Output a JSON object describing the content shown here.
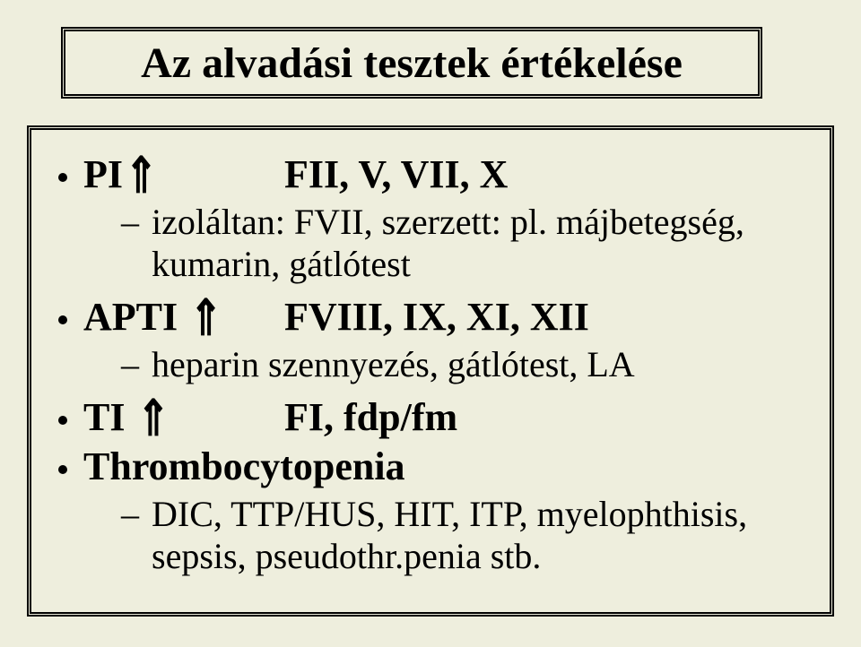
{
  "title": "Az alvadási tesztek értékelése",
  "items": [
    {
      "label": "PI",
      "arrow": "⇑",
      "value": "FII, V, VII, X",
      "sub": [
        "izoláltan: FVII, szerzett: pl. májbetegség, kumarin, gátlótest"
      ]
    },
    {
      "label": "APTI",
      "arrow": "⇑",
      "value": "FVIII, IX, XI, XII",
      "sub": [
        "heparin szennyezés, gátlótest, LA"
      ]
    },
    {
      "label": "TI",
      "arrow": "⇑",
      "value": "FI, fdp/fm",
      "sub": []
    },
    {
      "label": "Thrombocytopenia",
      "arrow": "",
      "value": "",
      "sub": [
        "DIC, TTP/HUS, HIT, ITP, myelophthisis, sepsis, pseudothr.penia stb."
      ]
    }
  ]
}
